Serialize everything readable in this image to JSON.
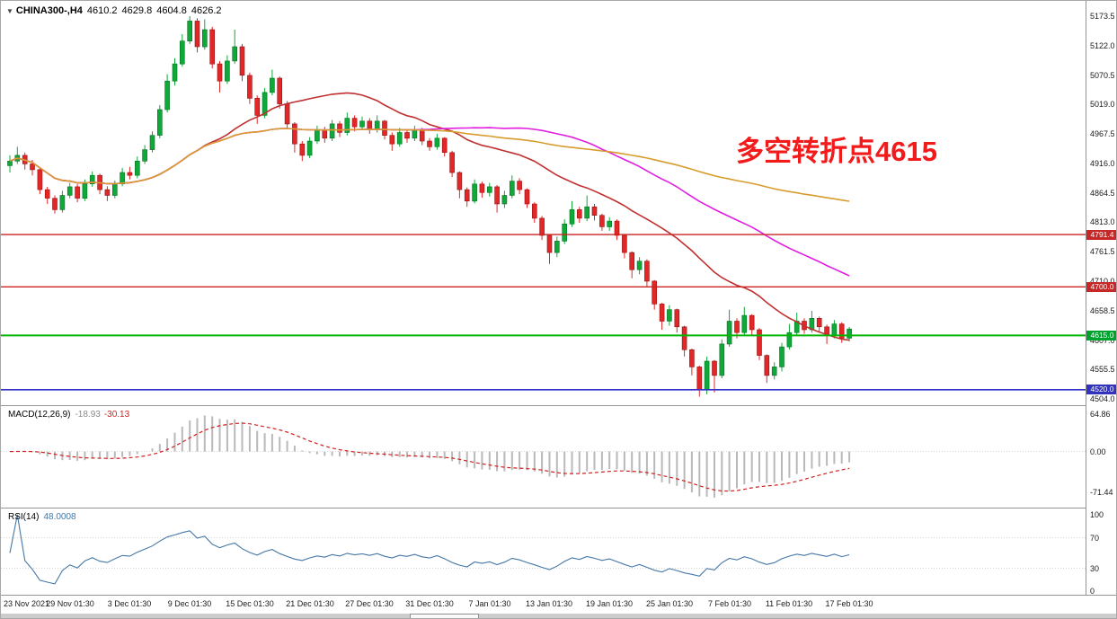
{
  "header": {
    "dropdown_icon": "▼",
    "symbol": "CHINA300-,H4",
    "open": "4610.2",
    "high": "4629.8",
    "low": "4604.8",
    "close": "4626.2"
  },
  "annotation": {
    "text": "多空转折点4615"
  },
  "indicator_labels": {
    "macd": {
      "name": "MACD(12,26,9)",
      "value1": "-18.93",
      "value2": "-30.13"
    },
    "rsi": {
      "name": "RSI(14)",
      "value": "48.0008"
    }
  },
  "price_axis": {
    "labels": [
      "5173.5",
      "5122.0",
      "5070.5",
      "5019.0",
      "4967.5",
      "4916.0",
      "4864.5",
      "4813.0",
      "4761.5",
      "4710.0",
      "4658.5",
      "4607.0",
      "4555.5",
      "4504.0"
    ]
  },
  "macd_axis": [
    "64.86",
    "0.00",
    "-71.44"
  ],
  "rsi_axis": [
    "100",
    "70",
    "30",
    "0"
  ],
  "colors": {
    "bull": "#0fa93a",
    "bull_stroke": "#076f22",
    "bear": "#e12727",
    "bear_stroke": "#971212",
    "macd_hist": "#b9b9b9",
    "macd_signal": "#d02020",
    "rsi_line": "#4577a7",
    "annotation": "#f21b1b"
  },
  "chart_data": {
    "type": "candlestick",
    "symbol": "CHINA300-",
    "timeframe": "H4",
    "title": "CHINA300- H4 candlestick chart with MACD and RSI",
    "ylim": [
      4504.0,
      5173.5
    ],
    "columns": [
      "open",
      "high",
      "low",
      "close"
    ],
    "last_ohlc": {
      "open": 4610.2,
      "high": 4629.8,
      "low": 4604.8,
      "close": 4626.2
    },
    "ohlc": [
      [
        4912,
        4930,
        4900,
        4920
      ],
      [
        4920,
        4945,
        4915,
        4930
      ],
      [
        4930,
        4935,
        4905,
        4915
      ],
      [
        4915,
        4922,
        4895,
        4905
      ],
      [
        4905,
        4908,
        4862,
        4870
      ],
      [
        4870,
        4875,
        4845,
        4855
      ],
      [
        4855,
        4860,
        4828,
        4835
      ],
      [
        4835,
        4868,
        4830,
        4860
      ],
      [
        4860,
        4882,
        4855,
        4875
      ],
      [
        4875,
        4880,
        4848,
        4855
      ],
      [
        4855,
        4888,
        4850,
        4880
      ],
      [
        4880,
        4902,
        4875,
        4895
      ],
      [
        4895,
        4898,
        4862,
        4870
      ],
      [
        4870,
        4876,
        4850,
        4860
      ],
      [
        4860,
        4886,
        4855,
        4880
      ],
      [
        4880,
        4908,
        4876,
        4900
      ],
      [
        4900,
        4910,
        4888,
        4895
      ],
      [
        4895,
        4928,
        4890,
        4920
      ],
      [
        4920,
        4948,
        4915,
        4940
      ],
      [
        4940,
        4972,
        4935,
        4965
      ],
      [
        4965,
        5018,
        4960,
        5010
      ],
      [
        5010,
        5072,
        5005,
        5060
      ],
      [
        5060,
        5100,
        5052,
        5090
      ],
      [
        5090,
        5142,
        5085,
        5130
      ],
      [
        5130,
        5173.5,
        5125,
        5165
      ],
      [
        5165,
        5170,
        5110,
        5120
      ],
      [
        5120,
        5168,
        5115,
        5150
      ],
      [
        5150,
        5155,
        5082,
        5090
      ],
      [
        5090,
        5095,
        5040,
        5060
      ],
      [
        5060,
        5105,
        5055,
        5095
      ],
      [
        5095,
        5150,
        5090,
        5120
      ],
      [
        5120,
        5125,
        5060,
        5070
      ],
      [
        5070,
        5075,
        5020,
        5030
      ],
      [
        5030,
        5035,
        4985,
        5000
      ],
      [
        5000,
        5048,
        4995,
        5040
      ],
      [
        5040,
        5080,
        5035,
        5065
      ],
      [
        5065,
        5068,
        5012,
        5020
      ],
      [
        5020,
        5025,
        4978,
        4985
      ],
      [
        4985,
        4988,
        4935,
        4950
      ],
      [
        4950,
        4955,
        4920,
        4930
      ],
      [
        4930,
        4962,
        4925,
        4955
      ],
      [
        4955,
        4982,
        4950,
        4975
      ],
      [
        4975,
        4980,
        4952,
        4960
      ],
      [
        4960,
        4992,
        4955,
        4985
      ],
      [
        4985,
        4990,
        4962,
        4970
      ],
      [
        4970,
        5005,
        4965,
        4995
      ],
      [
        4995,
        5000,
        4972,
        4980
      ],
      [
        4980,
        4998,
        4974,
        4990
      ],
      [
        4990,
        4995,
        4968,
        4975
      ],
      [
        4975,
        5000,
        4970,
        4990
      ],
      [
        4990,
        4992,
        4958,
        4965
      ],
      [
        4965,
        4970,
        4938,
        4950
      ],
      [
        4950,
        4978,
        4945,
        4970
      ],
      [
        4970,
        4976,
        4952,
        4960
      ],
      [
        4960,
        4982,
        4955,
        4975
      ],
      [
        4975,
        4978,
        4948,
        4955
      ],
      [
        4955,
        4960,
        4938,
        4945
      ],
      [
        4945,
        4968,
        4940,
        4960
      ],
      [
        4960,
        4962,
        4928,
        4935
      ],
      [
        4935,
        4938,
        4892,
        4900
      ],
      [
        4900,
        4902,
        4855,
        4870
      ],
      [
        4870,
        4874,
        4840,
        4850
      ],
      [
        4850,
        4888,
        4846,
        4880
      ],
      [
        4880,
        4884,
        4856,
        4865
      ],
      [
        4865,
        4882,
        4858,
        4875
      ],
      [
        4875,
        4878,
        4830,
        4845
      ],
      [
        4845,
        4868,
        4838,
        4860
      ],
      [
        4860,
        4895,
        4855,
        4885
      ],
      [
        4885,
        4890,
        4862,
        4870
      ],
      [
        4870,
        4872,
        4838,
        4845
      ],
      [
        4845,
        4848,
        4812,
        4820
      ],
      [
        4820,
        4824,
        4782,
        4790
      ],
      [
        4790,
        4792,
        4740,
        4760
      ],
      [
        4760,
        4788,
        4752,
        4780
      ],
      [
        4780,
        4818,
        4775,
        4810
      ],
      [
        4810,
        4850,
        4805,
        4835
      ],
      [
        4835,
        4840,
        4812,
        4820
      ],
      [
        4820,
        4860,
        4815,
        4840
      ],
      [
        4840,
        4845,
        4816,
        4825
      ],
      [
        4825,
        4828,
        4798,
        4805
      ],
      [
        4805,
        4822,
        4798,
        4815
      ],
      [
        4815,
        4818,
        4782,
        4790
      ],
      [
        4790,
        4792,
        4750,
        4760
      ],
      [
        4760,
        4762,
        4715,
        4730
      ],
      [
        4730,
        4752,
        4722,
        4745
      ],
      [
        4745,
        4748,
        4700,
        4710
      ],
      [
        4710,
        4712,
        4660,
        4670
      ],
      [
        4670,
        4672,
        4625,
        4640
      ],
      [
        4640,
        4668,
        4632,
        4660
      ],
      [
        4660,
        4662,
        4620,
        4630
      ],
      [
        4630,
        4632,
        4578,
        4590
      ],
      [
        4590,
        4592,
        4545,
        4560
      ],
      [
        4560,
        4562,
        4508,
        4520
      ],
      [
        4520,
        4578,
        4512,
        4570
      ],
      [
        4570,
        4572,
        4515,
        4545
      ],
      [
        4545,
        4608,
        4540,
        4600
      ],
      [
        4600,
        4660,
        4595,
        4640
      ],
      [
        4640,
        4645,
        4610,
        4620
      ],
      [
        4620,
        4665,
        4615,
        4650
      ],
      [
        4650,
        4652,
        4616,
        4625
      ],
      [
        4625,
        4628,
        4572,
        4580
      ],
      [
        4580,
        4582,
        4532,
        4545
      ],
      [
        4545,
        4568,
        4538,
        4560
      ],
      [
        4560,
        4602,
        4552,
        4595
      ],
      [
        4595,
        4635,
        4590,
        4620
      ],
      [
        4620,
        4655,
        4615,
        4640
      ],
      [
        4640,
        4645,
        4618,
        4625
      ],
      [
        4625,
        4658,
        4620,
        4645
      ],
      [
        4645,
        4648,
        4622,
        4630
      ],
      [
        4630,
        4634,
        4600,
        4615
      ],
      [
        4615,
        4642,
        4610,
        4635
      ],
      [
        4635,
        4638,
        4602,
        4610
      ],
      [
        4610.2,
        4629.8,
        4604.8,
        4626.2
      ]
    ],
    "moving_averages": [
      {
        "name": "fast-ma",
        "period": 26,
        "color": "#c03030"
      },
      {
        "name": "mid-ma",
        "period": 55,
        "color": "#e01fe0"
      },
      {
        "name": "slow-ma",
        "period": 120,
        "color": "#d79c2c"
      }
    ],
    "levels": [
      {
        "price": 4791.4,
        "label": "4791.4",
        "color": "#cc2222",
        "badge": "#c62828",
        "width": 1.4
      },
      {
        "price": 4700.0,
        "label": "4700.0",
        "color": "#cc2222",
        "badge": "#c62828",
        "width": 1.4
      },
      {
        "price": 4615.0,
        "label": "4615.0",
        "color": "#00b400",
        "badge": "#00a22e",
        "width": 2
      },
      {
        "price": 4520.0,
        "label": "4520.0",
        "color": "#3232c8",
        "badge": "#3333bb",
        "width": 1.6
      }
    ],
    "x_labels": [
      {
        "bar": 0,
        "text": "23 Nov 2021"
      },
      {
        "bar": 8,
        "text": "29 Nov 01:30"
      },
      {
        "bar": 16,
        "text": "3 Dec 01:30"
      },
      {
        "bar": 24,
        "text": "9 Dec 01:30"
      },
      {
        "bar": 32,
        "text": "15 Dec 01:30"
      },
      {
        "bar": 40,
        "text": "21 Dec 01:30"
      },
      {
        "bar": 48,
        "text": "27 Dec 01:30"
      },
      {
        "bar": 56,
        "text": "31 Dec 01:30"
      },
      {
        "bar": 64,
        "text": "7 Jan 01:30"
      },
      {
        "bar": 72,
        "text": "13 Jan 01:30"
      },
      {
        "bar": 80,
        "text": "19 Jan 01:30"
      },
      {
        "bar": 88,
        "text": "25 Jan 01:30"
      },
      {
        "bar": 96,
        "text": "7 Feb 01:30"
      },
      {
        "bar": 104,
        "text": "11 Feb 01:30"
      },
      {
        "bar": 112,
        "text": "17 Feb 01:30"
      }
    ],
    "indicators": {
      "macd": {
        "params": [
          12,
          26,
          9
        ],
        "current": [
          -18.93,
          -30.13
        ],
        "range": [
          -71.44,
          64.86
        ]
      },
      "rsi": {
        "period": 14,
        "current": 48.0008,
        "range": [
          0,
          100
        ],
        "levels": [
          70,
          30
        ]
      }
    }
  }
}
